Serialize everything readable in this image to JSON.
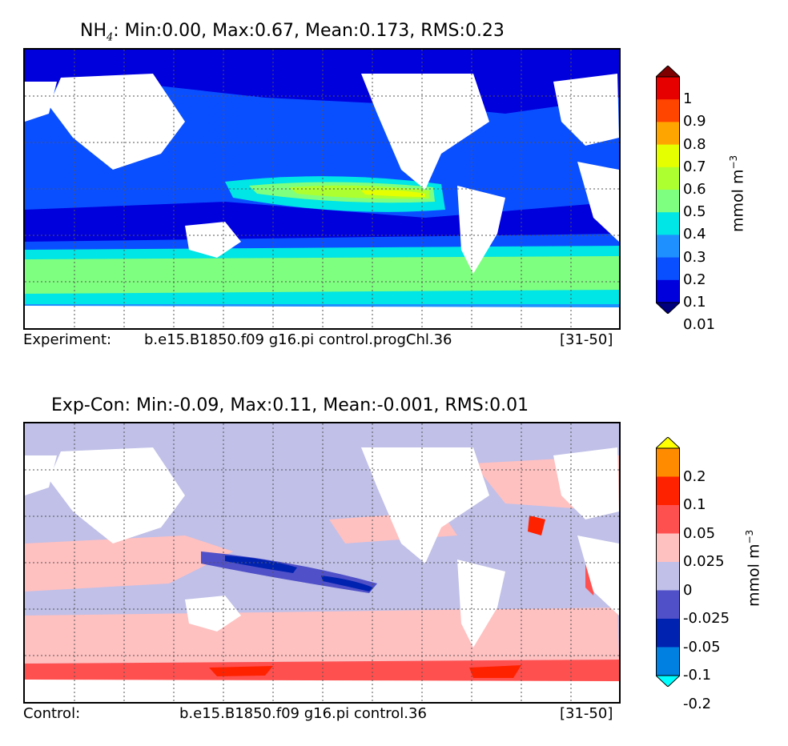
{
  "panels": [
    {
      "title_species": "NH",
      "title_sub": "4",
      "title_rest": ": Min:0.00, Max:0.67, Mean:0.173, RMS:0.23",
      "caption_label": "Experiment:",
      "caption_run": "b.e15.B1850.f09 g16.pi control.progChl.36",
      "caption_years": "[31-50]",
      "colorbar": {
        "ticks": [
          "1",
          "0.9",
          "0.8",
          "0.7",
          "0.6",
          "0.5",
          "0.4",
          "0.3",
          "0.2",
          "0.1",
          "0.01"
        ],
        "colors": [
          "#7f0000",
          "#e60000",
          "#ff4500",
          "#ffa500",
          "#e6ff00",
          "#adff2f",
          "#7fff7f",
          "#00e5e5",
          "#1e90ff",
          "#0a4fff",
          "#0000dd",
          "#00007f"
        ],
        "unit": "mmol m",
        "unit_exp": "−3"
      }
    },
    {
      "title": "Exp-Con: Min:-0.09, Max:0.11, Mean:-0.001, RMS:0.01",
      "caption_label": "Control:",
      "caption_run": "b.e15.B1850.f09 g16.pi control.36",
      "caption_years": "[31-50]",
      "colorbar": {
        "ticks": [
          "0.2",
          "0.1",
          "0.05",
          "0.025",
          "0",
          "-0.025",
          "-0.05",
          "-0.1",
          "-0.2"
        ],
        "colors": [
          "#ffff00",
          "#ff8c00",
          "#ff2200",
          "#ff5050",
          "#ffc0c0",
          "#c0c0e8",
          "#5050c8",
          "#0022b0",
          "#0080e0",
          "#00ffff"
        ],
        "unit": "mmol m",
        "unit_exp": "−3"
      }
    }
  ]
}
